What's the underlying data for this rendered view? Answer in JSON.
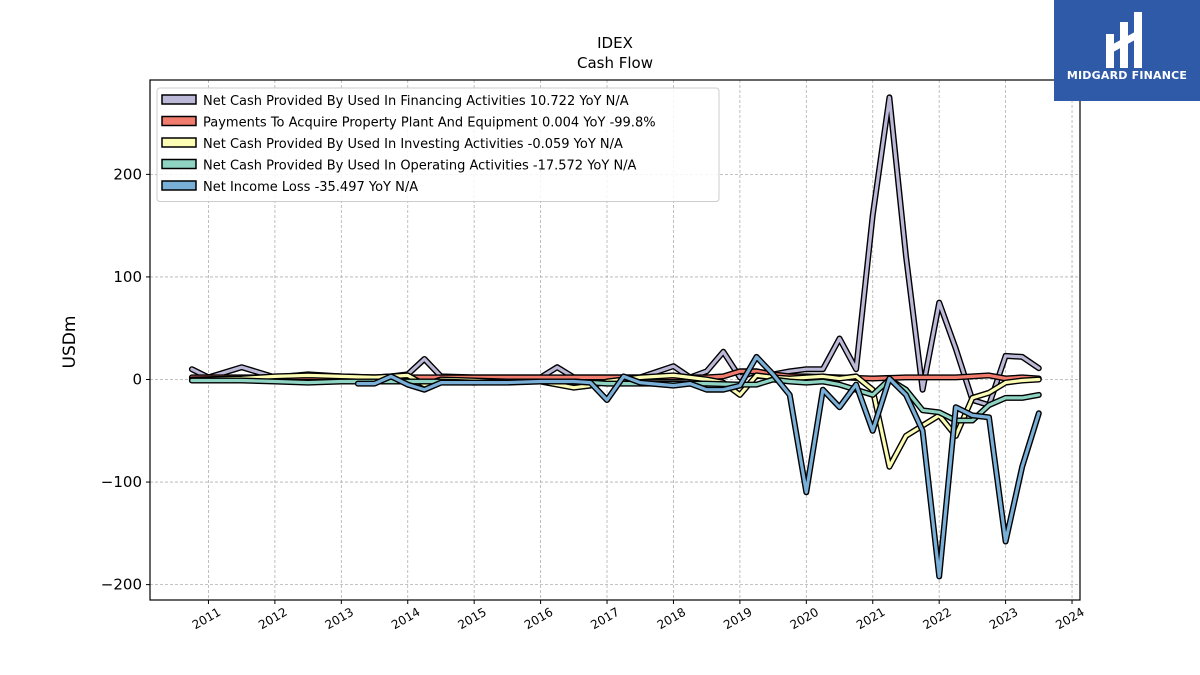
{
  "brand": {
    "name": "MIDGARD FINANCE",
    "logo_icon": "midgard-logo-icon",
    "color": "#2f5aa8"
  },
  "chart_data": {
    "type": "line",
    "title": "IDEX",
    "subtitle": "Cash Flow",
    "ylabel": "USDm",
    "xlabel": "",
    "ylim": [
      -215,
      292
    ],
    "xlim": [
      2010.12,
      2024.12
    ],
    "yticks": [
      -200,
      -100,
      0,
      100,
      200
    ],
    "ytick_labels": [
      "−200",
      "−100",
      "0",
      "100",
      "200"
    ],
    "xticks": [
      2011,
      2012,
      2013,
      2014,
      2015,
      2016,
      2017,
      2018,
      2019,
      2020,
      2021,
      2022,
      2023,
      2024
    ],
    "xtick_labels": [
      "2011",
      "2012",
      "2013",
      "2014",
      "2015",
      "2016",
      "2017",
      "2018",
      "2019",
      "2020",
      "2021",
      "2022",
      "2023",
      "2024"
    ],
    "grid": true,
    "legend_position": "top-left",
    "series": [
      {
        "name": "Net Cash Provided By Used In Financing Activities  10.722 YoY N/A",
        "color": "#bcb8d8",
        "x": [
          2010.75,
          2011.0,
          2011.5,
          2012.0,
          2012.5,
          2013.0,
          2013.5,
          2013.75,
          2014.0,
          2014.25,
          2014.5,
          2015.0,
          2015.5,
          2016.0,
          2016.25,
          2016.5,
          2017.0,
          2017.5,
          2018.0,
          2018.25,
          2018.5,
          2018.75,
          2019.0,
          2019.25,
          2019.5,
          2019.75,
          2020.0,
          2020.25,
          2020.5,
          2020.75,
          2021.0,
          2021.25,
          2021.5,
          2021.75,
          2022.0,
          2022.25,
          2022.5,
          2022.75,
          2023.0,
          2023.25,
          2023.5
        ],
        "y": [
          10,
          2,
          12,
          2,
          5,
          3,
          2,
          3,
          5,
          20,
          3,
          2,
          2,
          2,
          12,
          2,
          2,
          2,
          13,
          2,
          8,
          27,
          2,
          8,
          5,
          8,
          10,
          10,
          40,
          10,
          160,
          275,
          120,
          -10,
          75,
          30,
          -20,
          -25,
          23,
          22,
          11
        ]
      },
      {
        "name": "Payments To Acquire Property Plant And Equipment  0.004 YoY -99.8%",
        "color": "#f17c6e",
        "x": [
          2010.75,
          2011.5,
          2012.5,
          2013.5,
          2014.5,
          2015.5,
          2016.5,
          2017.5,
          2018.5,
          2018.75,
          2019.0,
          2019.25,
          2019.5,
          2019.75,
          2020.0,
          2020.5,
          2021.0,
          2021.5,
          2022.0,
          2022.25,
          2022.5,
          2022.75,
          2023.0,
          2023.25,
          2023.5
        ],
        "y": [
          2,
          2,
          2,
          2,
          2,
          2,
          2,
          2,
          2,
          3,
          8,
          8,
          5,
          3,
          3,
          2,
          1,
          2,
          2,
          2,
          3,
          4,
          1,
          2,
          1
        ]
      },
      {
        "name": "Net Cash Provided By Used In Investing Activities  -0.059 YoY N/A",
        "color": "#fcfcb4",
        "x": [
          2010.75,
          2011.5,
          2012.0,
          2012.5,
          2013.0,
          2013.5,
          2014.0,
          2014.25,
          2014.5,
          2015.0,
          2015.5,
          2016.0,
          2016.5,
          2016.75,
          2017.0,
          2017.5,
          2018.0,
          2018.5,
          2018.75,
          2019.0,
          2019.25,
          2019.5,
          2019.75,
          2020.0,
          2020.25,
          2020.5,
          2020.75,
          2021.0,
          2021.25,
          2021.5,
          2021.75,
          2022.0,
          2022.25,
          2022.5,
          2022.75,
          2023.0,
          2023.25,
          2023.5
        ],
        "y": [
          0,
          1,
          3,
          4,
          3,
          2,
          4,
          -5,
          0,
          -1,
          -2,
          -2,
          -8,
          -6,
          -2,
          2,
          4,
          0,
          -3,
          -15,
          4,
          2,
          1,
          2,
          3,
          1,
          3,
          -10,
          -85,
          -55,
          -45,
          -35,
          -55,
          -18,
          -13,
          -3,
          -1,
          0
        ]
      },
      {
        "name": "Net Cash Provided By Used In Operating Activities  -17.572 YoY N/A",
        "color": "#8fd3c3",
        "x": [
          2010.75,
          2011.0,
          2011.5,
          2012.0,
          2012.5,
          2013.0,
          2013.5,
          2014.0,
          2014.5,
          2015.0,
          2015.5,
          2016.0,
          2016.5,
          2017.0,
          2017.5,
          2018.0,
          2018.5,
          2019.0,
          2019.25,
          2019.5,
          2019.75,
          2020.0,
          2020.25,
          2020.5,
          2020.75,
          2021.0,
          2021.25,
          2021.5,
          2021.75,
          2022.0,
          2022.25,
          2022.5,
          2022.75,
          2023.0,
          2023.25,
          2023.5
        ],
        "y": [
          -1,
          -1,
          -1,
          -2,
          -3,
          -2,
          -2,
          -2,
          -2,
          -3,
          -2,
          -2,
          -2,
          -4,
          -4,
          -4,
          -4,
          -5,
          -5,
          0,
          -2,
          -3,
          -2,
          -5,
          -10,
          -15,
          0,
          -10,
          -30,
          -32,
          -40,
          -40,
          -25,
          -18,
          -18,
          -15
        ]
      },
      {
        "name": "Net Income Loss  -35.497 YoY N/A",
        "color": "#7aafd8",
        "x": [
          2013.25,
          2013.5,
          2013.75,
          2014.0,
          2014.25,
          2014.5,
          2015.0,
          2015.5,
          2016.0,
          2016.5,
          2016.75,
          2017.0,
          2017.25,
          2017.5,
          2018.0,
          2018.25,
          2018.5,
          2018.75,
          2019.0,
          2019.25,
          2019.5,
          2019.75,
          2020.0,
          2020.25,
          2020.5,
          2020.75,
          2021.0,
          2021.25,
          2021.5,
          2021.75,
          2022.0,
          2022.25,
          2022.5,
          2022.75,
          2023.0,
          2023.25,
          2023.5
        ],
        "y": [
          -4,
          -4,
          3,
          -5,
          -10,
          -3,
          -3,
          -3,
          -2,
          -2,
          -3,
          -20,
          3,
          -3,
          -6,
          -4,
          -10,
          -10,
          -6,
          22,
          5,
          -15,
          -110,
          -10,
          -27,
          -5,
          -50,
          1,
          -15,
          -50,
          -192,
          -27,
          -35,
          -37,
          -158,
          -85,
          -33
        ]
      }
    ]
  }
}
